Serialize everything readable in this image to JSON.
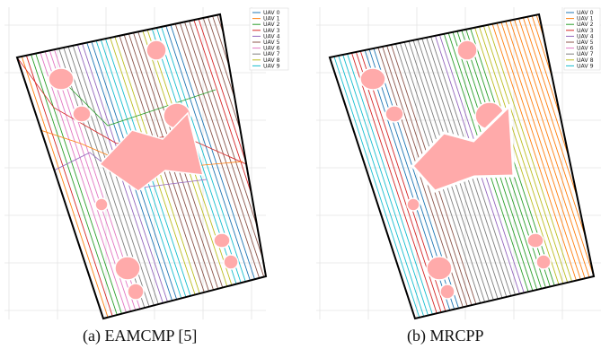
{
  "panels": [
    {
      "id": "a",
      "caption": "(a) EAMCMP [5]",
      "legend": [
        "UAV 0",
        "UAV 1",
        "UAV 2",
        "UAV 3",
        "UAV 4",
        "UAV 5",
        "UAV 6",
        "UAV 7",
        "UAV 8",
        "UAV 9"
      ]
    },
    {
      "id": "b",
      "caption": "(b) MRCPP",
      "legend": [
        "UAV 0",
        "UAV 1",
        "UAV 2",
        "UAV 3",
        "UAV 4",
        "UAV 5",
        "UAV 6",
        "UAV 7",
        "UAV 8",
        "UAV 9"
      ]
    }
  ],
  "uav_colors": [
    "#1f77b4",
    "#ff7f0e",
    "#2ca02c",
    "#d62728",
    "#9467bd",
    "#8c564b",
    "#e377c2",
    "#7f7f7f",
    "#bcbd22",
    "#17becf"
  ],
  "obstacle_color": "#ffaaaa",
  "boundary_color": "#000000"
}
